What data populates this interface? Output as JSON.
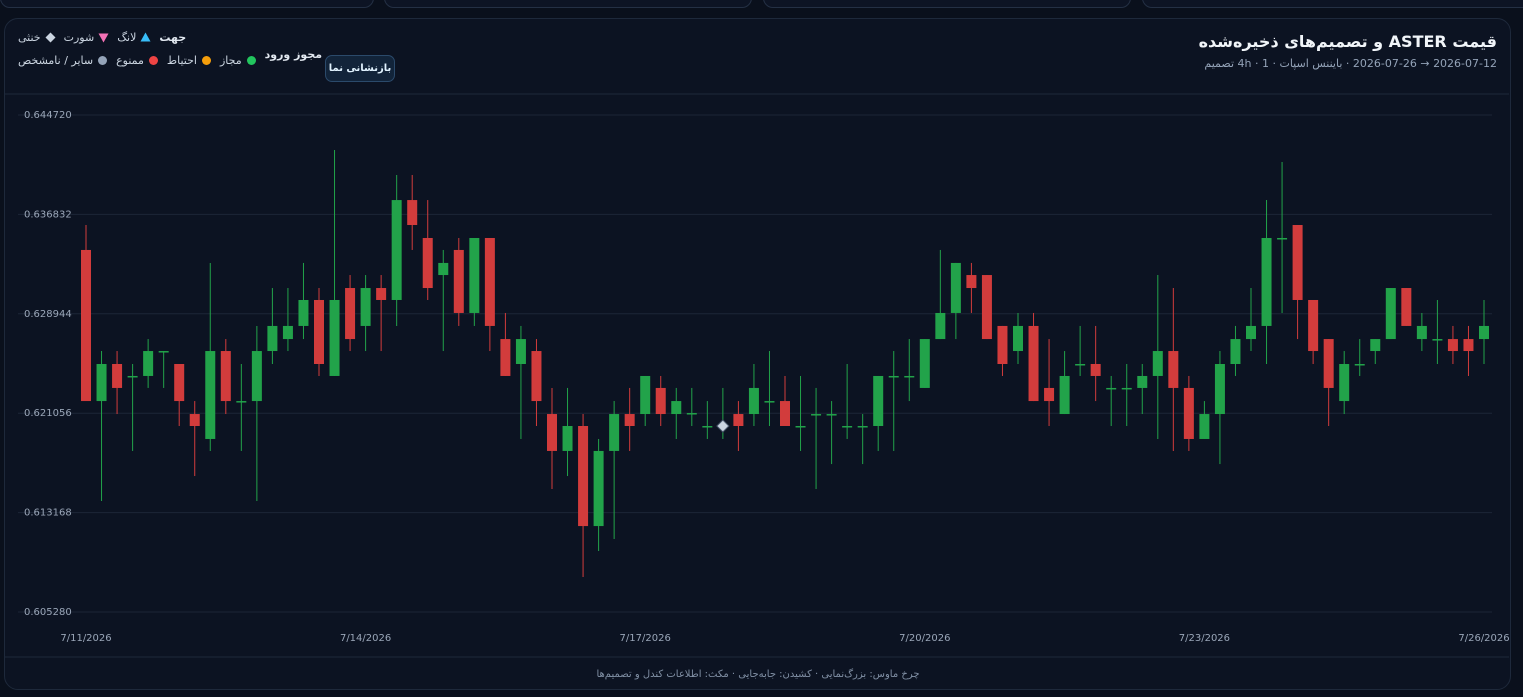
{
  "chart_data": {
    "type": "candlestick",
    "title": "قیمت ASTER و تصمیم‌های ذخیره‌شده",
    "subtitle": "2026-07-12 → 2026-07-26 · بایننس اسپات · 4h · 1 تصمیم",
    "categories": [
      "7/11/2026",
      null,
      null,
      null,
      null,
      null,
      null,
      null,
      null,
      null,
      null,
      null,
      null,
      null,
      null,
      null,
      null,
      null,
      "7/14/2026",
      null,
      null,
      null,
      null,
      null,
      null,
      null,
      null,
      null,
      null,
      null,
      null,
      null,
      null,
      null,
      null,
      null,
      "7/17/2026",
      null,
      null,
      null,
      null,
      null,
      null,
      null,
      null,
      null,
      null,
      null,
      null,
      null,
      null,
      null,
      null,
      null,
      "7/20/2026",
      null,
      null,
      null,
      null,
      null,
      null,
      null,
      null,
      null,
      null,
      null,
      null,
      null,
      null,
      null,
      null,
      null,
      "7/23/2026",
      null,
      null,
      null,
      null,
      null,
      null,
      null,
      null,
      null,
      null,
      null,
      null,
      null,
      null,
      null,
      null,
      null,
      "7/26/2026"
    ],
    "open": [
      0.63401,
      0.62202,
      0.62496,
      0.62393,
      0.62401,
      0.62591,
      0.62496,
      0.62099,
      0.61901,
      0.62599,
      0.62194,
      0.62202,
      0.62599,
      0.62694,
      0.62798,
      0.63004,
      0.62401,
      0.63099,
      0.62798,
      0.63099,
      0.63004,
      0.63797,
      0.63496,
      0.63202,
      0.63401,
      0.62901,
      0.63496,
      0.62694,
      0.62496,
      0.62599,
      0.62099,
      0.61806,
      0.62004,
      0.6121,
      0.61806,
      0.62099,
      0.62099,
      0.62306,
      0.62099,
      0.62099,
      0.61996,
      0.61996,
      0.62099,
      0.62099,
      0.62194,
      0.62202,
      0.61996,
      0.62091,
      0.62091,
      0.61996,
      0.61996,
      0.62004,
      0.62393,
      0.62393,
      0.62306,
      0.62694,
      0.62901,
      0.63202,
      0.63202,
      0.62798,
      0.62599,
      0.62798,
      0.62306,
      0.62099,
      0.62488,
      0.62496,
      0.62298,
      0.62298,
      0.62306,
      0.62401,
      0.62599,
      0.62306,
      0.61901,
      0.62099,
      0.62496,
      0.62694,
      0.62798,
      0.63488,
      0.63599,
      0.63004,
      0.62694,
      0.62202,
      0.62488,
      0.62599,
      0.62694,
      0.63099,
      0.62694,
      0.62686,
      0.62694,
      0.62694,
      0.62694
    ],
    "high": [
      0.63599,
      0.62599,
      0.62599,
      0.62496,
      0.62694,
      0.62599,
      0.62496,
      0.62202,
      0.63298,
      0.62694,
      0.62496,
      0.62798,
      0.63099,
      0.63099,
      0.63298,
      0.63099,
      0.64194,
      0.63202,
      0.63202,
      0.63202,
      0.63996,
      0.63996,
      0.63797,
      0.63401,
      0.63496,
      0.63496,
      0.63496,
      0.62901,
      0.62798,
      0.62694,
      0.62306,
      0.62306,
      0.62099,
      0.61901,
      0.62202,
      0.62306,
      0.62401,
      0.62401,
      0.62306,
      0.62306,
      0.62202,
      0.62306,
      0.62202,
      0.62496,
      0.62599,
      0.62401,
      0.62401,
      0.62306,
      0.62202,
      0.62496,
      0.62099,
      0.62401,
      0.62599,
      0.62694,
      0.62694,
      0.63401,
      0.63298,
      0.63298,
      0.63202,
      0.62798,
      0.62901,
      0.62901,
      0.62694,
      0.62599,
      0.62798,
      0.62798,
      0.62401,
      0.62496,
      0.62496,
      0.63202,
      0.63099,
      0.62401,
      0.62202,
      0.62599,
      0.62798,
      0.63099,
      0.63797,
      0.64099,
      0.63599,
      0.63004,
      0.62694,
      0.62599,
      0.62694,
      0.62694,
      0.63099,
      0.63099,
      0.62901,
      0.63004,
      0.62798,
      0.62798,
      0.63004
    ],
    "low": [
      0.62202,
      0.61409,
      0.62099,
      0.61806,
      0.62306,
      0.62306,
      0.62004,
      0.61607,
      0.61806,
      0.62099,
      0.61806,
      0.61409,
      0.62496,
      0.62599,
      0.62694,
      0.62401,
      0.62401,
      0.62599,
      0.62599,
      0.62599,
      0.62798,
      0.63401,
      0.63004,
      0.62599,
      0.62798,
      0.62798,
      0.62599,
      0.62401,
      0.61901,
      0.62004,
      0.61504,
      0.61607,
      0.60806,
      0.61012,
      0.61107,
      0.61806,
      0.62004,
      0.62004,
      0.61901,
      0.62004,
      0.61901,
      0.61901,
      0.61806,
      0.62004,
      0.62004,
      0.62004,
      0.61806,
      0.61504,
      0.61702,
      0.61901,
      0.61702,
      0.61806,
      0.61806,
      0.62202,
      0.62306,
      0.62694,
      0.62694,
      0.62901,
      0.62694,
      0.62401,
      0.62496,
      0.62202,
      0.62004,
      0.62099,
      0.62401,
      0.62202,
      0.62004,
      0.62004,
      0.62099,
      0.61901,
      0.61806,
      0.61806,
      0.61901,
      0.61702,
      0.62401,
      0.62599,
      0.62496,
      0.62901,
      0.62694,
      0.62496,
      0.62004,
      0.62099,
      0.62401,
      0.62496,
      0.62694,
      0.62798,
      0.62599,
      0.62496,
      0.62496,
      0.62401,
      0.62496
    ],
    "close": [
      0.62202,
      0.62496,
      0.62306,
      0.62401,
      0.62599,
      0.62599,
      0.62202,
      0.62004,
      0.62599,
      0.62202,
      0.62202,
      0.62599,
      0.62798,
      0.62798,
      0.63004,
      0.62496,
      0.63004,
      0.62694,
      0.63099,
      0.63004,
      0.63797,
      0.63599,
      0.63099,
      0.63298,
      0.62901,
      0.63496,
      0.62798,
      0.62401,
      0.62694,
      0.62202,
      0.61806,
      0.62004,
      0.6121,
      0.61806,
      0.62099,
      0.62004,
      0.62401,
      0.62099,
      0.62202,
      0.62107,
      0.62004,
      0.62004,
      0.62004,
      0.62306,
      0.62202,
      0.62004,
      0.62004,
      0.62099,
      0.62099,
      0.62004,
      0.62004,
      0.62401,
      0.62401,
      0.62401,
      0.62694,
      0.62901,
      0.63298,
      0.63099,
      0.62694,
      0.62496,
      0.62798,
      0.62202,
      0.62202,
      0.62401,
      0.62496,
      0.62401,
      0.62306,
      0.62306,
      0.62401,
      0.62599,
      0.62306,
      0.61901,
      0.62099,
      0.62496,
      0.62694,
      0.62798,
      0.63496,
      0.63496,
      0.63004,
      0.62599,
      0.62306,
      0.62496,
      0.62496,
      0.62694,
      0.63099,
      0.62798,
      0.62798,
      0.62694,
      0.62599,
      0.62599,
      0.62798
    ],
    "up_color": "#22a34a",
    "down_color": "#d23c3c",
    "ylim": [
      0.60528,
      0.64472
    ],
    "yticks": [
      {
        "value": 0.60528,
        "label": "0.605280"
      },
      {
        "value": 0.613168,
        "label": "0.613168"
      },
      {
        "value": 0.621056,
        "label": "0.621056"
      },
      {
        "value": 0.628944,
        "label": "0.628944"
      },
      {
        "value": 0.636832,
        "label": "0.636832"
      },
      {
        "value": 0.64472,
        "label": "0.644720"
      }
    ],
    "grid": true,
    "decisions": [
      {
        "index": 41,
        "price": 0.62004,
        "shape": "diamond",
        "color": "#cbd5e1"
      }
    ],
    "legend": {
      "direction": {
        "label": "جهت",
        "items": [
          {
            "name": "لانگ",
            "shape": "triangle-up",
            "color": "#38bdf8"
          },
          {
            "name": "شورت",
            "shape": "triangle-down",
            "color": "#f472b6"
          },
          {
            "name": "خنثی",
            "shape": "diamond",
            "color": "#cbd5e1"
          }
        ]
      },
      "entry": {
        "label": "مجوز ورود",
        "items": [
          {
            "name": "مجاز",
            "shape": "circle",
            "color": "#22c55e"
          },
          {
            "name": "احتیاط",
            "shape": "circle",
            "color": "#f59e0b"
          },
          {
            "name": "ممنوع",
            "shape": "circle",
            "color": "#ef4444"
          },
          {
            "name": "سایر / نامشخص",
            "shape": "circle",
            "color": "#94a3b8"
          }
        ]
      }
    }
  },
  "reset_button": "بازنشانی نما",
  "footer": "چرخ ماوس: بزرگ‌نمایی · کشیدن: جابه‌جایی · مکث: اطلاعات کندل و تصمیم‌ها"
}
